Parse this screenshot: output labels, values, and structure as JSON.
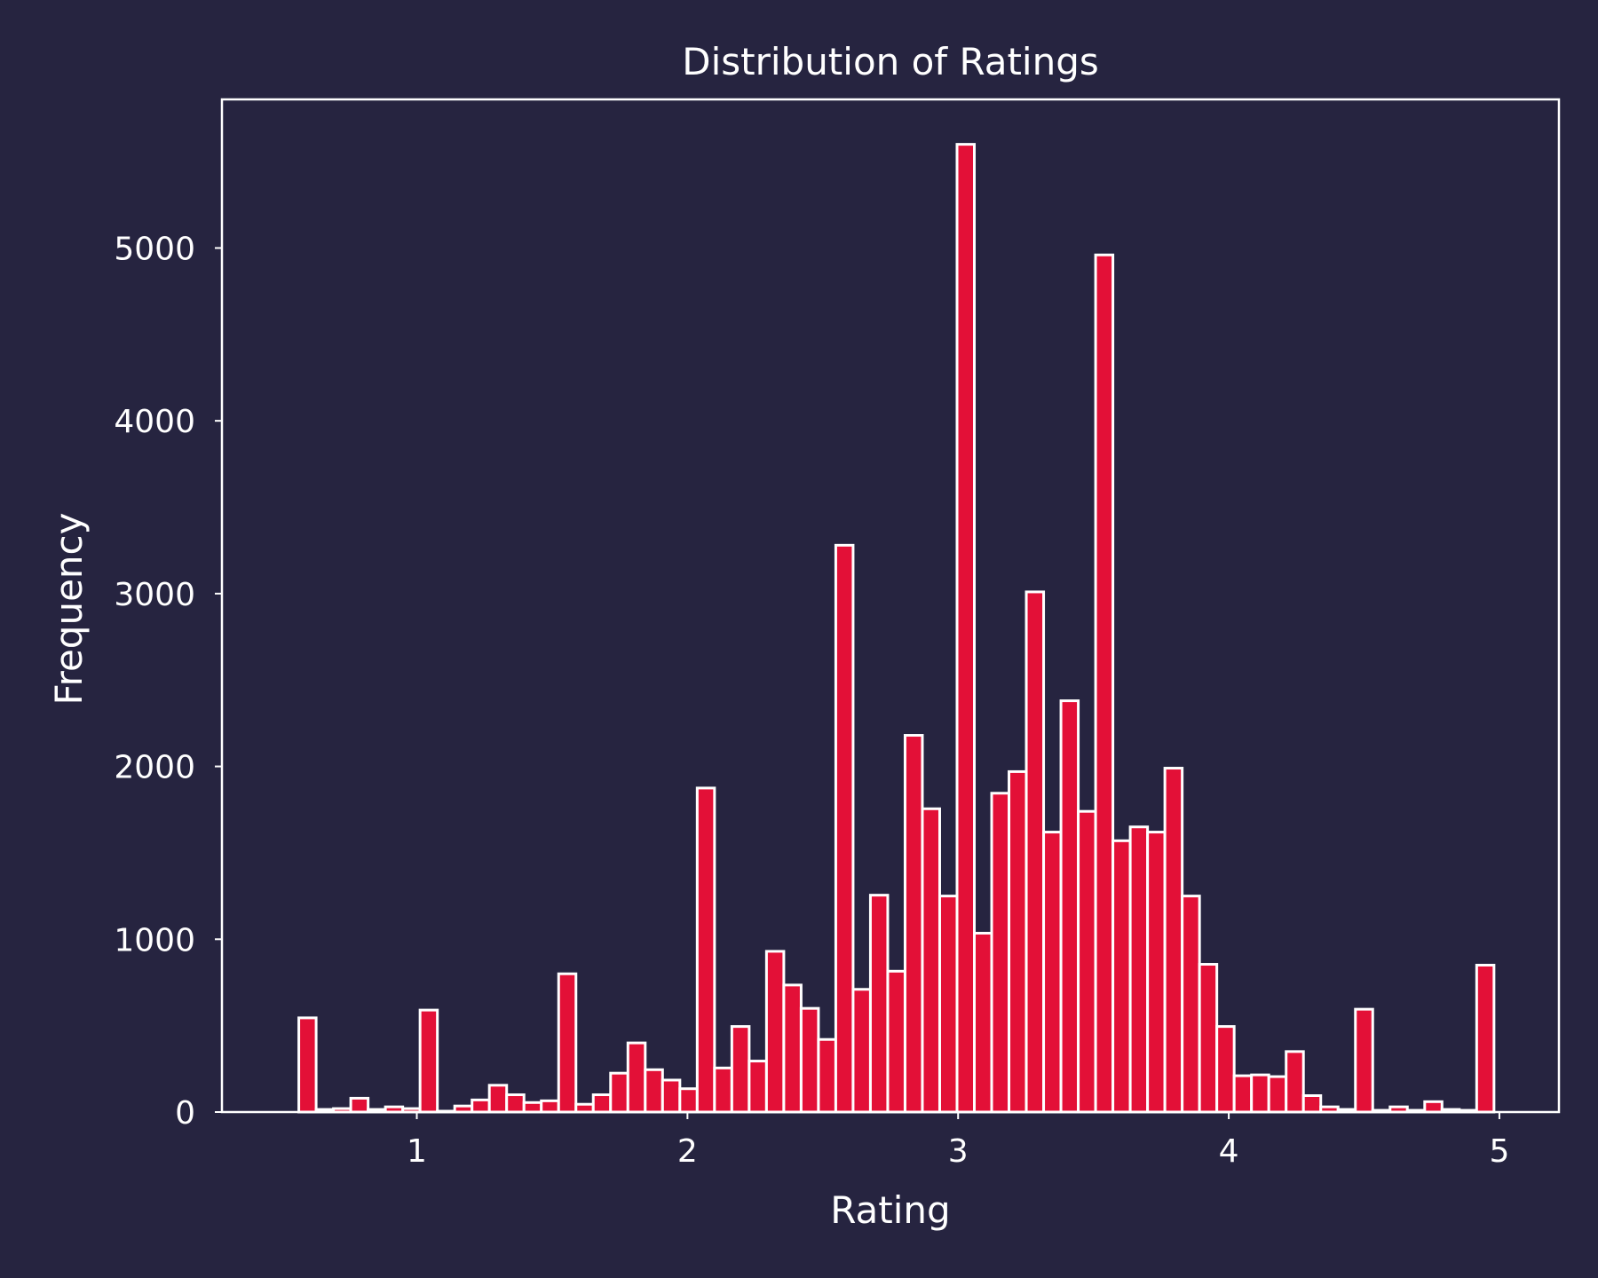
{
  "colors": {
    "background": "#262440",
    "bar_fill": "#e31037",
    "bar_edge": "#ffffff",
    "axes": "#ffffff",
    "text": "#ffffff"
  },
  "chart_data": {
    "type": "bar",
    "title": "Distribution of Ratings",
    "xlabel": "Rating",
    "ylabel": "Frequency",
    "grid": false,
    "xlim": [
      0.28,
      5.22
    ],
    "ylim": [
      0,
      5860
    ],
    "xticks": [
      1,
      2,
      3,
      4,
      5
    ],
    "yticks": [
      0,
      1000,
      2000,
      3000,
      4000,
      5000
    ],
    "bin_start": 0.5,
    "bin_width": 0.064,
    "values": [
      0,
      545,
      15,
      20,
      80,
      15,
      30,
      20,
      590,
      5,
      35,
      70,
      155,
      100,
      55,
      65,
      800,
      45,
      100,
      225,
      400,
      245,
      185,
      135,
      1875,
      255,
      495,
      295,
      930,
      735,
      600,
      420,
      3280,
      710,
      1255,
      815,
      2180,
      1755,
      1250,
      5600,
      1035,
      1845,
      1970,
      3010,
      1620,
      2380,
      1740,
      4960,
      1570,
      1650,
      1620,
      1990,
      1250,
      855,
      495,
      210,
      215,
      205,
      350,
      95,
      30,
      15,
      595,
      10,
      30,
      10,
      60,
      15,
      10,
      850
    ]
  }
}
